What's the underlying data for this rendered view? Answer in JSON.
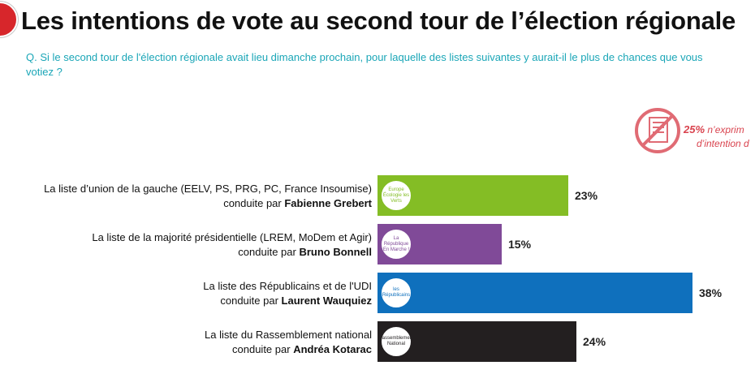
{
  "title": "Les intentions de vote au second tour de l’élection régionale",
  "question": "Q. Si le second tour de l'élection régionale avait lieu dimanche prochain, pour laquelle des listes suivantes y aurait-il le plus de chances que vous votiez ?",
  "abstention": {
    "percent": "25%",
    "line1_text": "n’exprim",
    "line2_text": "d’intention d",
    "color": "#e06b74",
    "icon": "no-ballot-icon"
  },
  "chart_data": {
    "type": "bar",
    "orientation": "horizontal",
    "categories": [
      "La liste d’union de la gauche (EELV, PS, PRG, PC, France Insoumise) conduite par Fabienne Grebert",
      "La liste de la majorité présidentielle (LREM, MoDem et Agir) conduite par Bruno Bonnell",
      "La liste des Républicains et de l'UDI conduite par Laurent Wauquiez",
      "La liste du Rassemblement national conduite par Andréa Kotarac"
    ],
    "values": [
      23,
      15,
      38,
      24
    ],
    "value_labels": [
      "23%",
      "15%",
      "38%",
      "24%"
    ],
    "colors": [
      "#84bd25",
      "#804a98",
      "#0f70bd",
      "#231f20"
    ],
    "xlim": [
      0,
      38
    ],
    "grid": false,
    "legend": "none"
  },
  "rows": [
    {
      "line1": "La liste d’union de la gauche (EELV, PS, PRG, PC, France Insoumise)",
      "prefix": "conduite par ",
      "candidate": "Fabienne Grebert",
      "logo_text": "Europe Écologie les Verts",
      "logo_icon": "eelv-logo-icon"
    },
    {
      "line1": "La liste de la majorité présidentielle (LREM, MoDem et Agir)",
      "prefix": "conduite par ",
      "candidate": "Bruno Bonnell",
      "logo_text": "La République En Marche !",
      "logo_icon": "en-marche-logo-icon"
    },
    {
      "line1": "La liste des Républicains et de l'UDI",
      "prefix": "conduite par ",
      "candidate": "Laurent Wauquiez",
      "logo_text": "les Républicains",
      "logo_icon": "les-republicains-logo-icon"
    },
    {
      "line1": "La liste du Rassemblement national",
      "prefix": "conduite par ",
      "candidate": "Andréa Kotarac",
      "logo_text": "Rassemblement National",
      "logo_icon": "rassemblement-national-logo-icon"
    }
  ]
}
